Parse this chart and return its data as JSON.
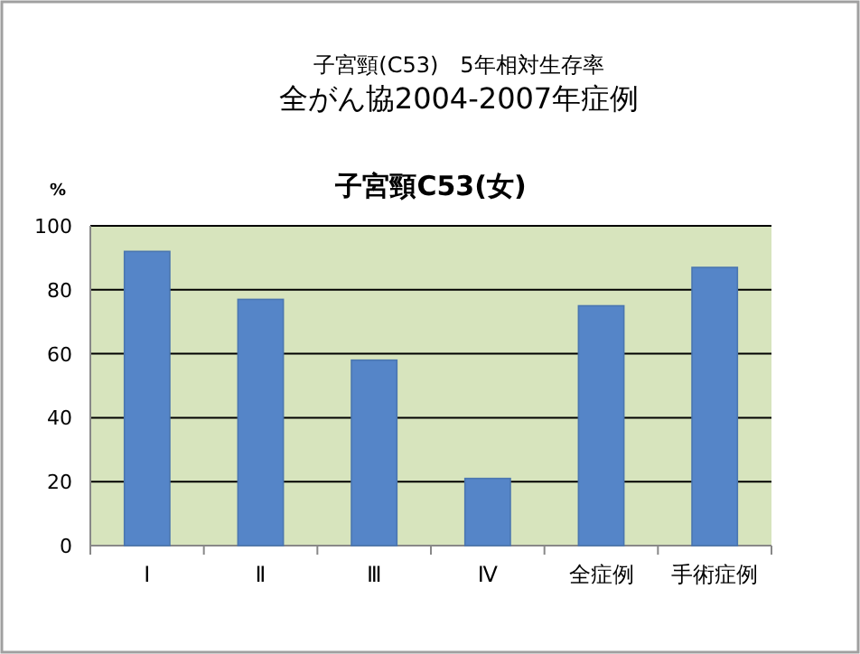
{
  "chart_data": {
    "type": "bar",
    "title": "子宮頸C53(女)",
    "annotations": [
      "子宮頸(C53)　5年相対生存率",
      "全がん協2004-2007年症例"
    ],
    "ylabel": "%",
    "categories": [
      "Ⅰ",
      "Ⅱ",
      "Ⅲ",
      "Ⅳ",
      "全症例",
      "手術症例"
    ],
    "series": [
      {
        "color": "#5585c8",
        "values": [
          92,
          77,
          58,
          21,
          75,
          87
        ]
      }
    ],
    "ylim": [
      0,
      100
    ],
    "yticks": [
      0,
      20,
      40,
      60,
      80,
      100
    ],
    "grid": "y"
  }
}
